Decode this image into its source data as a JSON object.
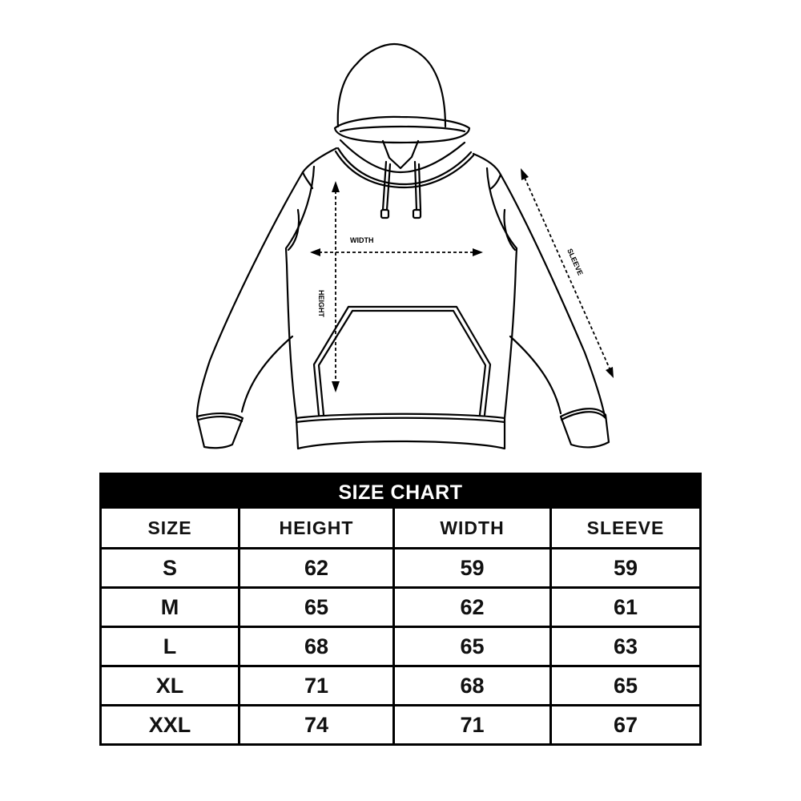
{
  "diagram": {
    "labels": {
      "width": "WIDTH",
      "height": "HEIGHT",
      "sleeve": "SLEEVE"
    }
  },
  "size_chart": {
    "title": "SIZE CHART",
    "columns": [
      "SIZE",
      "HEIGHT",
      "WIDTH",
      "SLEEVE"
    ],
    "rows": [
      [
        "S",
        "62",
        "59",
        "59"
      ],
      [
        "M",
        "65",
        "62",
        "61"
      ],
      [
        "L",
        "68",
        "65",
        "63"
      ],
      [
        "XL",
        "71",
        "68",
        "65"
      ],
      [
        "XXL",
        "74",
        "71",
        "67"
      ]
    ]
  }
}
